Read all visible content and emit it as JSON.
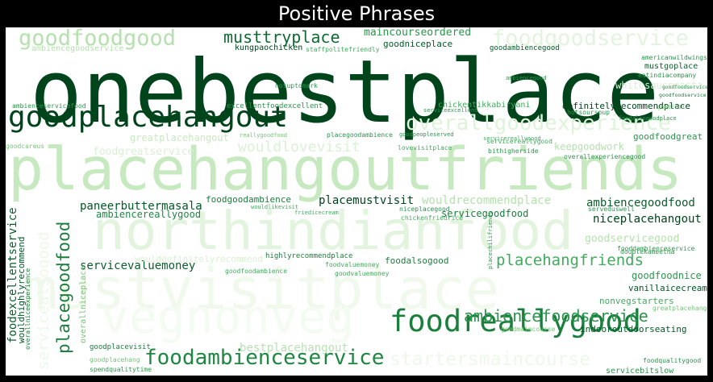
{
  "chart_data": {
    "type": "wordcloud",
    "title": "Positive Phrases",
    "words": [
      {
        "text": "onebestplace",
        "color": "#00441b"
      },
      {
        "text": "placehangoutfriends",
        "color": "#c7e9c0"
      },
      {
        "text": "mustvisitplace",
        "color": "#f0f9ec"
      },
      {
        "text": "northindianfood",
        "color": "#e3f4de"
      },
      {
        "text": "vegnonveg",
        "color": "#f4fbf2"
      },
      {
        "text": "goodplacehangout",
        "color": "#00441b"
      },
      {
        "text": "foodreallygood",
        "color": "#1a7f3c"
      },
      {
        "text": "foodambienceservice",
        "color": "#1e8741"
      },
      {
        "text": "goodfoodgood",
        "color": "#b5e1ae"
      },
      {
        "text": "foodgoodservice",
        "color": "#e3f4de"
      },
      {
        "text": "overallgoodexperience",
        "color": "#dff3da"
      },
      {
        "text": "musttryplace",
        "color": "#0f6a32"
      },
      {
        "text": "ambiencefoodservice",
        "color": "#2c944c"
      },
      {
        "text": "placehangfriends",
        "color": "#41ab5d"
      },
      {
        "text": "startersmaincourse",
        "color": "#eef8ea"
      },
      {
        "text": "placegoodfood",
        "color": "#1a7f3c"
      },
      {
        "text": "servicealsogood",
        "color": "#eef8ea"
      },
      {
        "text": "wouldlovevisit",
        "color": "#dbf1d5"
      },
      {
        "text": "bestplacehangout",
        "color": "#b7e2b1"
      },
      {
        "text": "maincourseordered",
        "color": "#2c944c"
      },
      {
        "text": "niceplacehangout",
        "color": "#00441b"
      },
      {
        "text": "servicevaluemoney",
        "color": "#0b5e2b"
      },
      {
        "text": "ambiencegoodfood",
        "color": "#0b5e2b"
      },
      {
        "text": "wouldrecommendplace",
        "color": "#b5e1ae"
      },
      {
        "text": "placemustvisit",
        "color": "#00441b"
      },
      {
        "text": "foodexcellentservice",
        "color": "#0b5e2b"
      },
      {
        "text": "paneerbuttermasala",
        "color": "#005a25"
      },
      {
        "text": "ambiencereallygood",
        "color": "#1e8741"
      },
      {
        "text": "servicegoodfood",
        "color": "#1a7f3c"
      },
      {
        "text": "foodgoodambience",
        "color": "#1a7f3c"
      },
      {
        "text": "goodservicegood",
        "color": "#b5e1ae"
      },
      {
        "text": "greatplacehangout",
        "color": "#c7e9c0"
      },
      {
        "text": "keepgoodwork",
        "color": "#b5e1ae"
      },
      {
        "text": "foodgreatservice",
        "color": "#d9f0d3"
      },
      {
        "text": "wouldhighlyrecommend",
        "color": "#005a25"
      },
      {
        "text": "goodfoodnice",
        "color": "#2c944c"
      },
      {
        "text": "indooroutdoorseating",
        "color": "#005a25"
      },
      {
        "text": "vanillaicecream",
        "color": "#005a25"
      },
      {
        "text": "nonvegstarters",
        "color": "#41ab5d"
      },
      {
        "text": "definitelyrecommendplace",
        "color": "#00441b"
      },
      {
        "text": "goodfoodgreat",
        "color": "#2c944c"
      },
      {
        "text": "goodniceplace",
        "color": "#005a25"
      },
      {
        "text": "kungpaochicken",
        "color": "#00441b"
      },
      {
        "text": "staffpolitefriendly",
        "color": "#41ab5d"
      },
      {
        "text": "ambiencegoodservice",
        "color": "#b5e1ae"
      },
      {
        "text": "goodambiencegood",
        "color": "#005a25"
      },
      {
        "text": "mustgoplace",
        "color": "#0b5e2b"
      },
      {
        "text": "americanwildwings",
        "color": "#2c944c"
      },
      {
        "text": "eatindiacompany",
        "color": "#2c944c"
      },
      {
        "text": "whitesaucepasta",
        "color": "#d9f0d3"
      },
      {
        "text": "goodfoodservice",
        "color": "#1a7f3c"
      },
      {
        "text": "notuptomark",
        "color": "#2c944c"
      },
      {
        "text": "ambienceservicefood",
        "color": "#2c944c"
      },
      {
        "text": "excellentfoodexcellent",
        "color": "#2c944c"
      },
      {
        "text": "chickentikkabiryani",
        "color": "#41ab5d"
      },
      {
        "text": "hotsoursoup",
        "color": "#2c944c"
      },
      {
        "text": "overallexperiencegood",
        "color": "#2c944c"
      },
      {
        "text": "bithigherside",
        "color": "#2c944c"
      },
      {
        "text": "placegoodambience",
        "color": "#2c944c"
      },
      {
        "text": "lovevisitplace",
        "color": "#41ab5d"
      },
      {
        "text": "servicereallygood",
        "color": "#41ab5d"
      },
      {
        "text": "goodcareus",
        "color": "#74c476"
      },
      {
        "text": "niceplacegood",
        "color": "#2c944c"
      },
      {
        "text": "chickenfriedrice",
        "color": "#41ab5d"
      },
      {
        "text": "friedicecream",
        "color": "#41ab5d"
      },
      {
        "text": "wouldlikevisit",
        "color": "#41ab5d"
      },
      {
        "text": "serveduswell",
        "color": "#2c944c"
      },
      {
        "text": "doublekameetha",
        "color": "#2c944c"
      },
      {
        "text": "fooddambienceservice",
        "color": "#2c944c"
      },
      {
        "text": "highlyrecommendplace",
        "color": "#1a7f3c"
      },
      {
        "text": "foodvaluemoney",
        "color": "#41ab5d"
      },
      {
        "text": "foodalsogood",
        "color": "#1a7f3c"
      },
      {
        "text": "goodfoodambience",
        "color": "#41ab5d"
      },
      {
        "text": "goodvaluemoney",
        "color": "#41ab5d"
      },
      {
        "text": "woulddefinitelyrecommend",
        "color": "#d9f0d3"
      },
      {
        "text": "overallniceexperience",
        "color": "#1a7f3c"
      },
      {
        "text": "overallniceplace",
        "color": "#74c476"
      },
      {
        "text": "placechilifriends",
        "color": "#2c944c"
      },
      {
        "text": "goodplacevisit",
        "color": "#1a7f3c"
      },
      {
        "text": "goodplacehang",
        "color": "#74c476"
      },
      {
        "text": "spendqualitytime",
        "color": "#2c944c"
      },
      {
        "text": "goodmaincourse",
        "color": "#74c476"
      },
      {
        "text": "greatplacehang",
        "color": "#74c476"
      },
      {
        "text": "foodqualitygood",
        "color": "#2c944c"
      },
      {
        "text": "servicebitslow",
        "color": "#2c944c"
      },
      {
        "text": "servicereallygood",
        "color": "#41ab5d"
      },
      {
        "text": "goodpeopleserved",
        "color": "#2c944c"
      },
      {
        "text": "serviceexcellent",
        "color": "#2c944c"
      },
      {
        "text": "ambiencegood",
        "color": "#2c944c"
      },
      {
        "text": "reallygoodfood",
        "color": "#74c476"
      },
      {
        "text": "foodalsogoodplace",
        "color": "#2c944c"
      },
      {
        "text": "goodfoodservice",
        "color": "#2c944c"
      },
      {
        "text": "goodfood",
        "color": "#74c476"
      }
    ]
  }
}
